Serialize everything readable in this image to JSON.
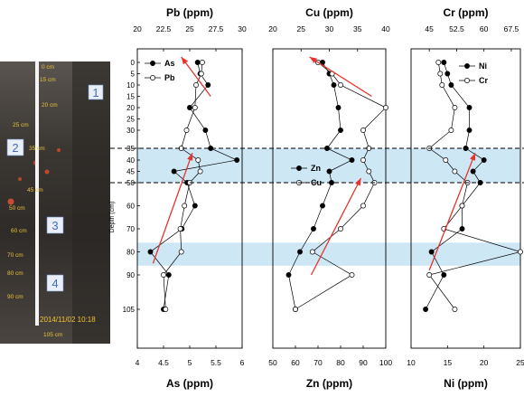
{
  "photo": {
    "core_numbers": [
      "1",
      "2",
      "3",
      "4"
    ],
    "depth_marks": [
      "0 cm",
      "15 cm",
      "20 cm",
      "25 cm",
      "35 cm",
      "45 cm",
      "50 cm",
      "60 cm",
      "70 cm",
      "80 cm",
      "90 cm",
      "105 cm"
    ],
    "timestamp": "2014/11/02 10:18"
  },
  "colors": {
    "band": "#cde7f5",
    "trend_arrow": "#e8322b",
    "series_line": "#000000",
    "photo_bg": "#3e3a36"
  },
  "chart_data": [
    {
      "type": "line",
      "ylabel": "Depth (cm)",
      "ylim": [
        108,
        -5
      ],
      "yticks": [
        0,
        5,
        10,
        15,
        20,
        25,
        30,
        35,
        40,
        45,
        50,
        60,
        70,
        80,
        90,
        105
      ],
      "depth_scale": "piecewise, compressed below 50 cm",
      "top_axis": {
        "label": "Pb (ppm)",
        "range": [
          20,
          30
        ],
        "ticks": [
          20,
          22.5,
          25,
          27.5,
          30
        ]
      },
      "bottom_axis": {
        "label": "As (ppm)",
        "range": [
          4,
          6
        ],
        "ticks": [
          4,
          4.5,
          5,
          5.5,
          6
        ]
      },
      "legend": "top-right",
      "series": [
        {
          "name": "As",
          "axis": "bottom",
          "marker": "filled",
          "depth": [
            0,
            5,
            10,
            20,
            30,
            35,
            40,
            45,
            50,
            60,
            70,
            80,
            90,
            105
          ],
          "values": [
            5.15,
            5.2,
            5.35,
            5.0,
            5.3,
            5.4,
            5.9,
            4.7,
            4.95,
            5.1,
            4.85,
            4.25,
            4.6,
            4.5
          ]
        },
        {
          "name": "Pb",
          "axis": "top",
          "marker": "open",
          "depth": [
            0,
            5,
            10,
            20,
            30,
            35,
            40,
            45,
            50,
            60,
            70,
            80,
            90,
            105
          ],
          "values": [
            26.2,
            26.1,
            25.6,
            25.5,
            24.7,
            24.2,
            25.8,
            26.0,
            25.0,
            24.5,
            24.1,
            24.2,
            22.5,
            22.7
          ]
        }
      ]
    },
    {
      "type": "line",
      "ylim": [
        108,
        -5
      ],
      "top_axis": {
        "label": "Cu (ppm)",
        "range": [
          20,
          40
        ],
        "ticks": [
          20,
          25,
          30,
          35,
          40
        ]
      },
      "bottom_axis": {
        "label": "Zn (ppm)",
        "range": [
          50,
          100
        ],
        "ticks": [
          50,
          60,
          70,
          80,
          90,
          100
        ]
      },
      "legend": "center-right",
      "series": [
        {
          "name": "Zn",
          "axis": "bottom",
          "marker": "filled",
          "depth": [
            0,
            5,
            10,
            20,
            30,
            35,
            40,
            45,
            50,
            60,
            70,
            80,
            90,
            105
          ],
          "values": [
            72,
            75,
            77,
            79,
            80,
            74,
            85,
            75,
            76,
            72,
            68,
            62,
            57,
            60
          ]
        },
        {
          "name": "Cu",
          "axis": "top",
          "marker": "open",
          "depth": [
            0,
            5,
            10,
            20,
            30,
            35,
            40,
            45,
            50,
            60,
            70,
            80,
            90,
            105
          ],
          "values": [
            28,
            30.5,
            32,
            40,
            36,
            37,
            36,
            37,
            38,
            36,
            32,
            27,
            34,
            24
          ]
        }
      ]
    },
    {
      "type": "line",
      "ylim": [
        108,
        -5
      ],
      "top_axis": {
        "label": "Cr (ppm)",
        "range": [
          40,
          70
        ],
        "ticks": [
          45,
          52.5,
          60,
          67.5
        ]
      },
      "bottom_axis": {
        "label": "Ni (ppm)",
        "range": [
          10,
          25
        ],
        "ticks": [
          10,
          15,
          20,
          25
        ]
      },
      "legend": "top-right",
      "series": [
        {
          "name": "Ni",
          "axis": "bottom",
          "marker": "filled",
          "depth": [
            0,
            5,
            10,
            20,
            30,
            35,
            40,
            45,
            50,
            60,
            70,
            80,
            90,
            105
          ],
          "values": [
            14.5,
            15,
            15.5,
            18,
            18,
            17.5,
            20,
            18.5,
            19.5,
            17,
            17,
            12.8,
            14.5,
            12
          ]
        },
        {
          "name": "Cr",
          "axis": "top",
          "marker": "open",
          "depth": [
            0,
            5,
            10,
            20,
            30,
            35,
            40,
            45,
            50,
            60,
            70,
            80,
            90,
            105
          ],
          "values": [
            47.5,
            48,
            48.5,
            52,
            51,
            45,
            49.5,
            52,
            55.5,
            54,
            49,
            70,
            45,
            52
          ]
        }
      ]
    }
  ],
  "trend_arrows": [
    {
      "panel": 0,
      "series": "Pb",
      "from": [
        27.0,
        15
      ],
      "to": [
        24.2,
        -2
      ]
    },
    {
      "panel": 0,
      "series": "As",
      "from": [
        4.3,
        85
      ],
      "to": [
        5.05,
        37
      ]
    },
    {
      "panel": 1,
      "series": "Cu",
      "from": [
        37.5,
        15
      ],
      "to": [
        26.5,
        -2
      ]
    },
    {
      "panel": 1,
      "series": "Zn",
      "from": [
        67,
        90
      ],
      "to": [
        89,
        48
      ]
    },
    {
      "panel": 2,
      "series": "Ni",
      "from": [
        12.5,
        88
      ],
      "to": [
        18.8,
        37
      ]
    }
  ],
  "bands": [
    [
      35,
      50
    ],
    [
      76,
      86
    ]
  ],
  "dashed_lines": [
    35,
    50
  ]
}
